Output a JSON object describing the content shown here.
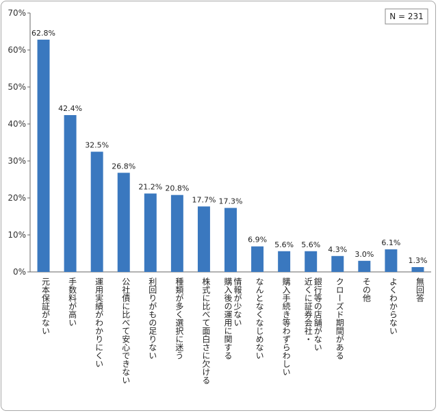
{
  "chart_data": {
    "type": "bar",
    "categories": [
      [
        "元本保証がない"
      ],
      [
        "手数料が高い"
      ],
      [
        "運用実績がわかりにくい"
      ],
      [
        "公社債に比べて安心できない"
      ],
      [
        "利回りがもの足りない"
      ],
      [
        "種類が多く選択に迷う"
      ],
      [
        "株式に比べて面白さに欠ける"
      ],
      [
        "情報が少ない",
        "購入後の運用に関する"
      ],
      [
        "なんとなくなじめない"
      ],
      [
        "購入手続き等わずらわしい"
      ],
      [
        "銀行等の店舗がない",
        "近くに証券会社・"
      ],
      [
        "クローズド期間がある"
      ],
      [
        "その他"
      ],
      [
        "よくわからない"
      ],
      [
        "無回答"
      ]
    ],
    "values": [
      62.8,
      42.4,
      32.5,
      26.8,
      21.2,
      20.8,
      17.7,
      17.3,
      6.9,
      5.6,
      5.6,
      4.3,
      3.0,
      6.1,
      1.3
    ],
    "value_labels": [
      "62.8%",
      "42.4%",
      "32.5%",
      "26.8%",
      "21.2%",
      "20.8%",
      "17.7%",
      "17.3%",
      "6.9%",
      "5.6%",
      "5.6%",
      "4.3%",
      "3.0%",
      "6.1%",
      "1.3%"
    ],
    "y_ticks": [
      0,
      10,
      20,
      30,
      40,
      50,
      60,
      70
    ],
    "y_tick_labels": [
      "0%",
      "10%",
      "20%",
      "30%",
      "40%",
      "50%",
      "60%",
      "70%"
    ],
    "ylim": [
      0,
      70
    ],
    "grid": false,
    "bar_color": "#3a78bf",
    "sample_note": "N = 231"
  }
}
